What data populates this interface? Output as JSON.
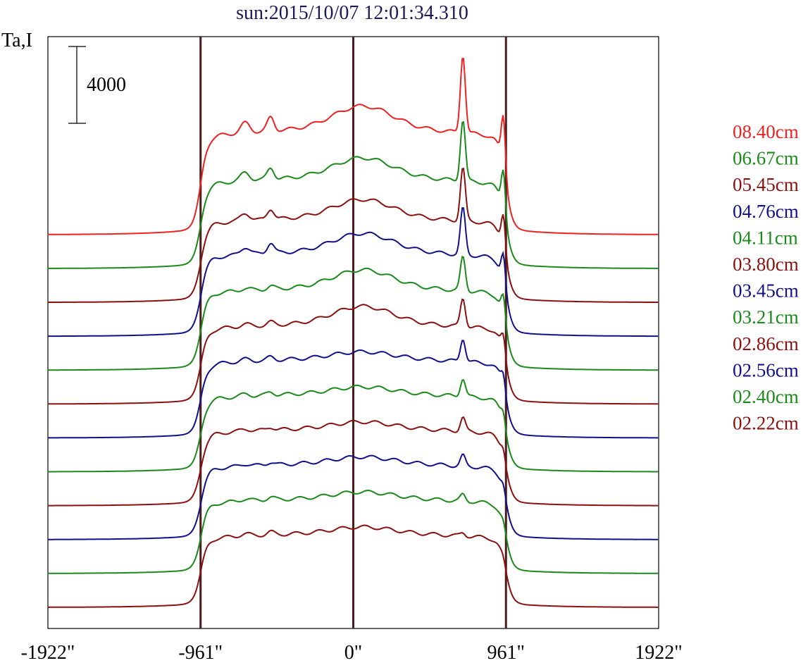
{
  "chart_data": {
    "type": "line",
    "title": "sun:2015/10/07 12:01:34.310",
    "ylabel": "Ta,I",
    "xlabel": "",
    "scale_bar_label": "4000",
    "x_ticks": [
      {
        "value": -1922,
        "label": "-1922\""
      },
      {
        "value": -961,
        "label": "-961\""
      },
      {
        "value": 0,
        "label": "0\""
      },
      {
        "value": 961,
        "label": "961\""
      },
      {
        "value": 1922,
        "label": "1922\""
      }
    ],
    "vertical_lines": [
      -961,
      0,
      961
    ],
    "xlim": [
      -1922,
      1922
    ],
    "grid": false,
    "legend_position": "right",
    "colors": {
      "red": "#ee2222",
      "green": "#1a8a1a",
      "darkred": "#8b1010",
      "blue": "#10108b",
      "vline": "#4a1c1c",
      "title": "#1a1a5a"
    },
    "series": [
      {
        "name": "08.40cm",
        "color": "#ee2222",
        "base": 0,
        "amp": 1.0,
        "peak1": 7400,
        "peak2": 6000
      },
      {
        "name": "06.67cm",
        "color": "#1a8a1a",
        "base": 0,
        "amp": 0.86,
        "peak1": 5800,
        "peak2": 4800
      },
      {
        "name": "05.45cm",
        "color": "#8b1010",
        "base": 0,
        "amp": 0.8,
        "peak1": 5000,
        "peak2": 4000
      },
      {
        "name": "04.76cm",
        "color": "#10108b",
        "base": 0,
        "amp": 0.8,
        "peak1": 4400,
        "peak2": 3300
      },
      {
        "name": "04.11cm",
        "color": "#1a8a1a",
        "base": 0,
        "amp": 0.78,
        "peak1": 3200,
        "peak2": 2500
      },
      {
        "name": "03.80cm",
        "color": "#8b1010",
        "base": 0,
        "amp": 0.76,
        "peak1": 2700,
        "peak2": 2000
      },
      {
        "name": "03.45cm",
        "color": "#10108b",
        "base": 0,
        "amp": 0.75,
        "peak1": 2200,
        "peak2": 1600
      },
      {
        "name": "03.21cm",
        "color": "#1a8a1a",
        "base": 0,
        "amp": 0.74,
        "peak1": 1700,
        "peak2": 1300
      },
      {
        "name": "02.86cm",
        "color": "#8b1010",
        "base": 0,
        "amp": 0.73,
        "peak1": 1300,
        "peak2": 1000
      },
      {
        "name": "02.56cm",
        "color": "#10108b",
        "base": 0,
        "amp": 0.72,
        "peak1": 1000,
        "peak2": 800
      },
      {
        "name": "02.40cm",
        "color": "#1a8a1a",
        "base": 0,
        "amp": 0.71,
        "peak1": 600,
        "peak2": 500
      },
      {
        "name": "02.22cm",
        "color": "#8b1010",
        "base": 0,
        "amp": 0.7,
        "peak1": 300,
        "peak2": 300
      }
    ]
  }
}
